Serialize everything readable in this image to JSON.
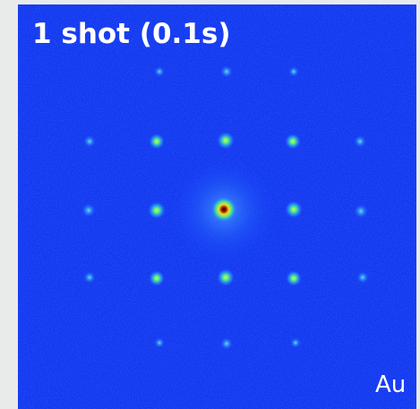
{
  "title": "1 shot (0.1s)",
  "label": "Au"
}
